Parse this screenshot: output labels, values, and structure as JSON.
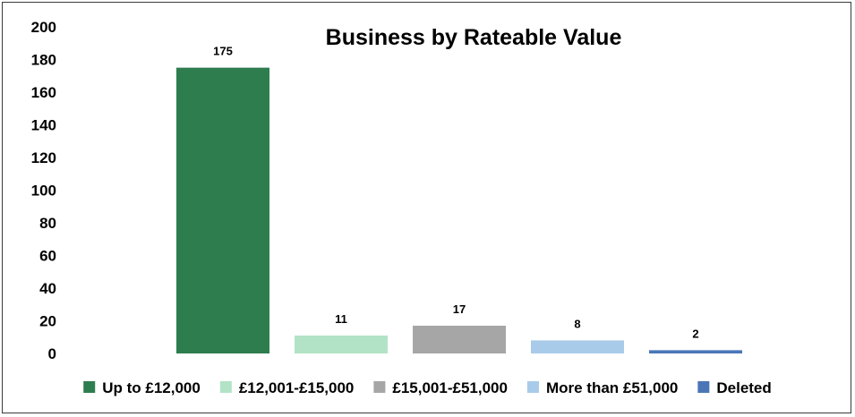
{
  "chart_data": {
    "type": "bar",
    "title": "Business by Rateable Value",
    "xlabel": "",
    "ylabel": "",
    "ylim": [
      0,
      200
    ],
    "yticks": [
      0,
      20,
      40,
      60,
      80,
      100,
      120,
      140,
      160,
      180,
      200
    ],
    "grid": false,
    "legend_position": "bottom",
    "series": [
      {
        "name": "Up to £12,000",
        "value": 175,
        "color": "#2e7d4f"
      },
      {
        "name": "£12,001-£15,000",
        "value": 11,
        "color": "#b2e3c6"
      },
      {
        "name": "£15,001-£51,000",
        "value": 17,
        "color": "#a6a6a6"
      },
      {
        "name": "More than £51,000",
        "value": 8,
        "color": "#a9cbea"
      },
      {
        "name": "Deleted",
        "value": 2,
        "color": "#4a76b8"
      }
    ]
  }
}
